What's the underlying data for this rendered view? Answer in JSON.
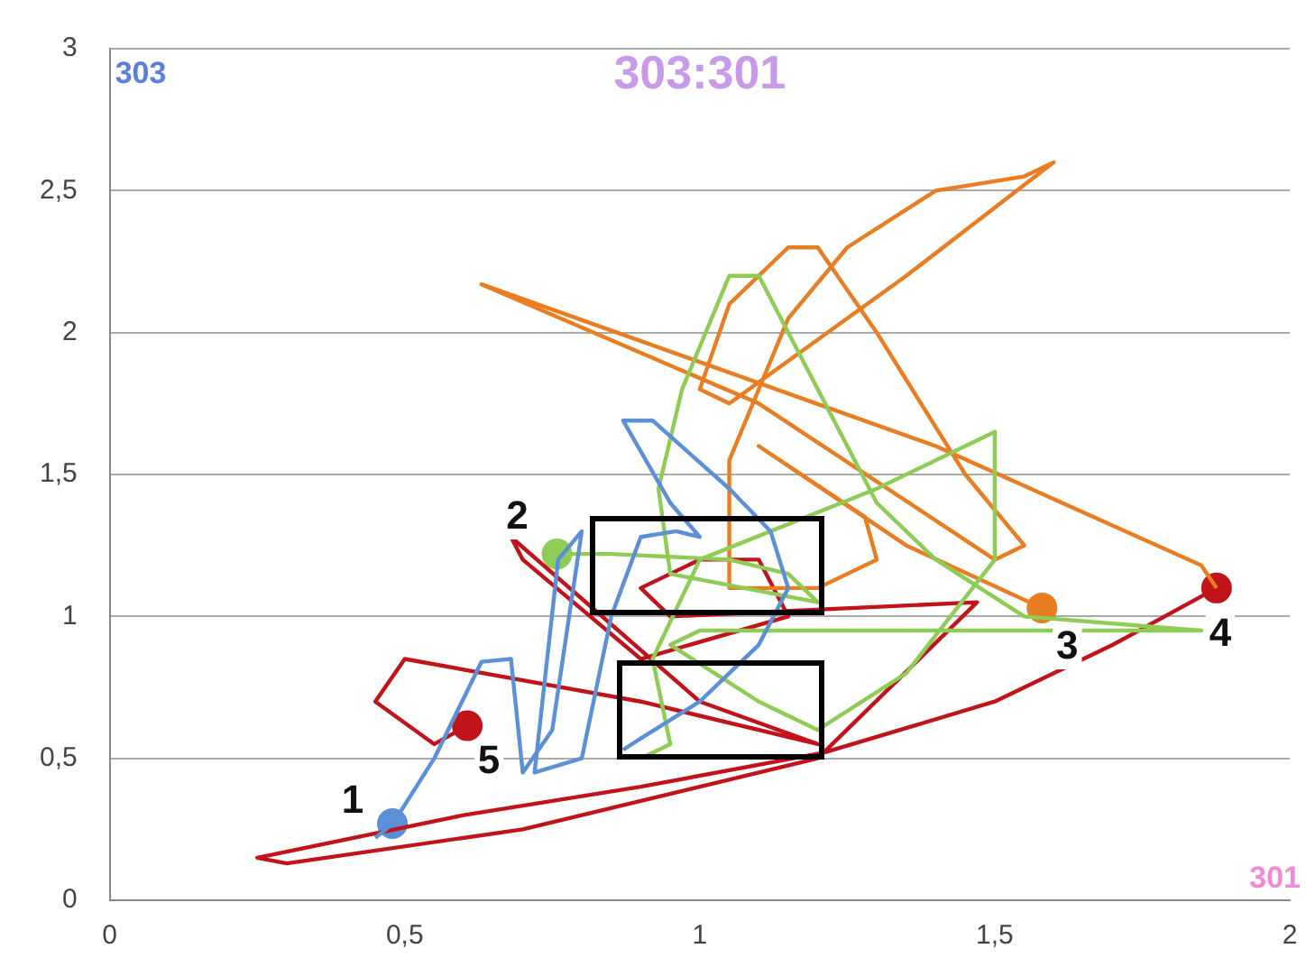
{
  "chart_data": {
    "type": "line",
    "title": "303:301",
    "xlabel": "301",
    "ylabel": "303",
    "xlim": [
      0,
      2
    ],
    "xticks": [
      0,
      {
        "value": 0.5,
        "label": "0,5"
      },
      1,
      {
        "value": 1.5,
        "label": "1,5"
      },
      2
    ],
    "ylim": [
      0,
      3
    ],
    "yticks": [
      0,
      {
        "value": 0.5,
        "label": "0,5"
      },
      1,
      {
        "value": 1.5,
        "label": "1,5"
      },
      2,
      {
        "value": 2.5,
        "label": "2,5"
      },
      3
    ],
    "grid": "y",
    "legend": false,
    "line_style": "solid",
    "annotations": [
      {
        "text": "1",
        "x": 0.479,
        "y": 0.27
      },
      {
        "text": "2",
        "x": 0.758,
        "y": 1.22
      },
      {
        "text": "3",
        "x": 1.58,
        "y": 1.03
      },
      {
        "text": "4",
        "x": 1.876,
        "y": 1.1
      },
      {
        "text": "5",
        "x": 0.606,
        "y": 0.615
      }
    ],
    "series": [
      {
        "marker": "none",
        "color": "#5b8fd6",
        "x": [
          0.45,
          0.48,
          0.55,
          0.63,
          0.68,
          0.7,
          0.75,
          0.8,
          0.76,
          0.72,
          0.8,
          0.85,
          0.9,
          0.96,
          1.0,
          0.95,
          0.87,
          0.92,
          1.05,
          1.12,
          1.15,
          1.1,
          1.0,
          0.9,
          0.87
        ],
        "values": [
          0.22,
          0.27,
          0.5,
          0.84,
          0.85,
          0.45,
          0.6,
          1.3,
          1.2,
          0.45,
          0.5,
          1.0,
          1.28,
          1.3,
          1.28,
          1.4,
          1.69,
          1.69,
          1.45,
          1.3,
          1.1,
          0.9,
          0.7,
          0.57,
          0.53
        ]
      },
      {
        "marker": "none",
        "color": "#8fcc55",
        "x": [
          0.76,
          0.85,
          1.05,
          1.15,
          1.2,
          0.95,
          0.93,
          0.97,
          1.05,
          1.1,
          1.2,
          1.3,
          1.4,
          1.55,
          1.85,
          1.5,
          1.0,
          0.95,
          1.1,
          1.2,
          1.35,
          1.5,
          1.5,
          1.3,
          1.0,
          0.92,
          0.95,
          0.9
        ],
        "values": [
          1.22,
          1.22,
          1.2,
          1.15,
          1.05,
          1.15,
          1.45,
          1.8,
          2.2,
          2.2,
          1.8,
          1.4,
          1.2,
          1.0,
          0.95,
          0.95,
          0.95,
          0.9,
          0.7,
          0.6,
          0.8,
          1.2,
          1.65,
          1.45,
          1.2,
          0.85,
          0.55,
          0.5
        ]
      },
      {
        "marker": "none",
        "color": "#e87d22",
        "x": [
          1.58,
          1.35,
          1.1,
          1.28,
          1.3,
          1.2,
          1.05,
          1.05,
          1.15,
          1.25,
          1.4,
          1.55,
          1.6,
          1.35,
          1.05,
          1.0,
          1.05,
          1.15,
          1.2,
          1.3,
          1.45,
          1.55,
          1.5,
          1.1,
          0.63,
          1.4,
          1.85,
          1.876
        ],
        "values": [
          1.03,
          1.25,
          1.6,
          1.35,
          1.2,
          1.1,
          1.1,
          1.55,
          2.05,
          2.3,
          2.5,
          2.55,
          2.6,
          2.2,
          1.75,
          1.8,
          2.1,
          2.3,
          2.3,
          2.0,
          1.5,
          1.25,
          1.2,
          1.75,
          2.17,
          1.6,
          1.18,
          1.1
        ]
      },
      {
        "marker": "none",
        "color": "#c0141a",
        "x": [
          1.876,
          1.7,
          1.5,
          1.21,
          0.9,
          0.6,
          0.25,
          0.3,
          0.7,
          1.2,
          1.47,
          0.95,
          0.9,
          1.0,
          1.1,
          1.15,
          0.9,
          0.7,
          0.68,
          1.0,
          1.2,
          0.9,
          0.5,
          0.45,
          0.55,
          0.606
        ],
        "values": [
          1.1,
          0.9,
          0.7,
          0.52,
          0.4,
          0.3,
          0.15,
          0.13,
          0.25,
          0.5,
          1.05,
          1.0,
          1.1,
          1.2,
          1.2,
          1.0,
          0.85,
          1.2,
          1.28,
          0.7,
          0.55,
          0.7,
          0.85,
          0.7,
          0.55,
          0.615
        ]
      },
      {
        "type": "scatter",
        "marker": "circle",
        "x": [
          0.479,
          0.758,
          1.58,
          1.876,
          0.606
        ],
        "values": [
          0.27,
          1.22,
          1.03,
          1.1,
          0.615
        ],
        "colors": [
          "#5b8fd6",
          "#8fcc55",
          "#e87d22",
          "#c0141a",
          "#c0141a"
        ]
      }
    ]
  }
}
